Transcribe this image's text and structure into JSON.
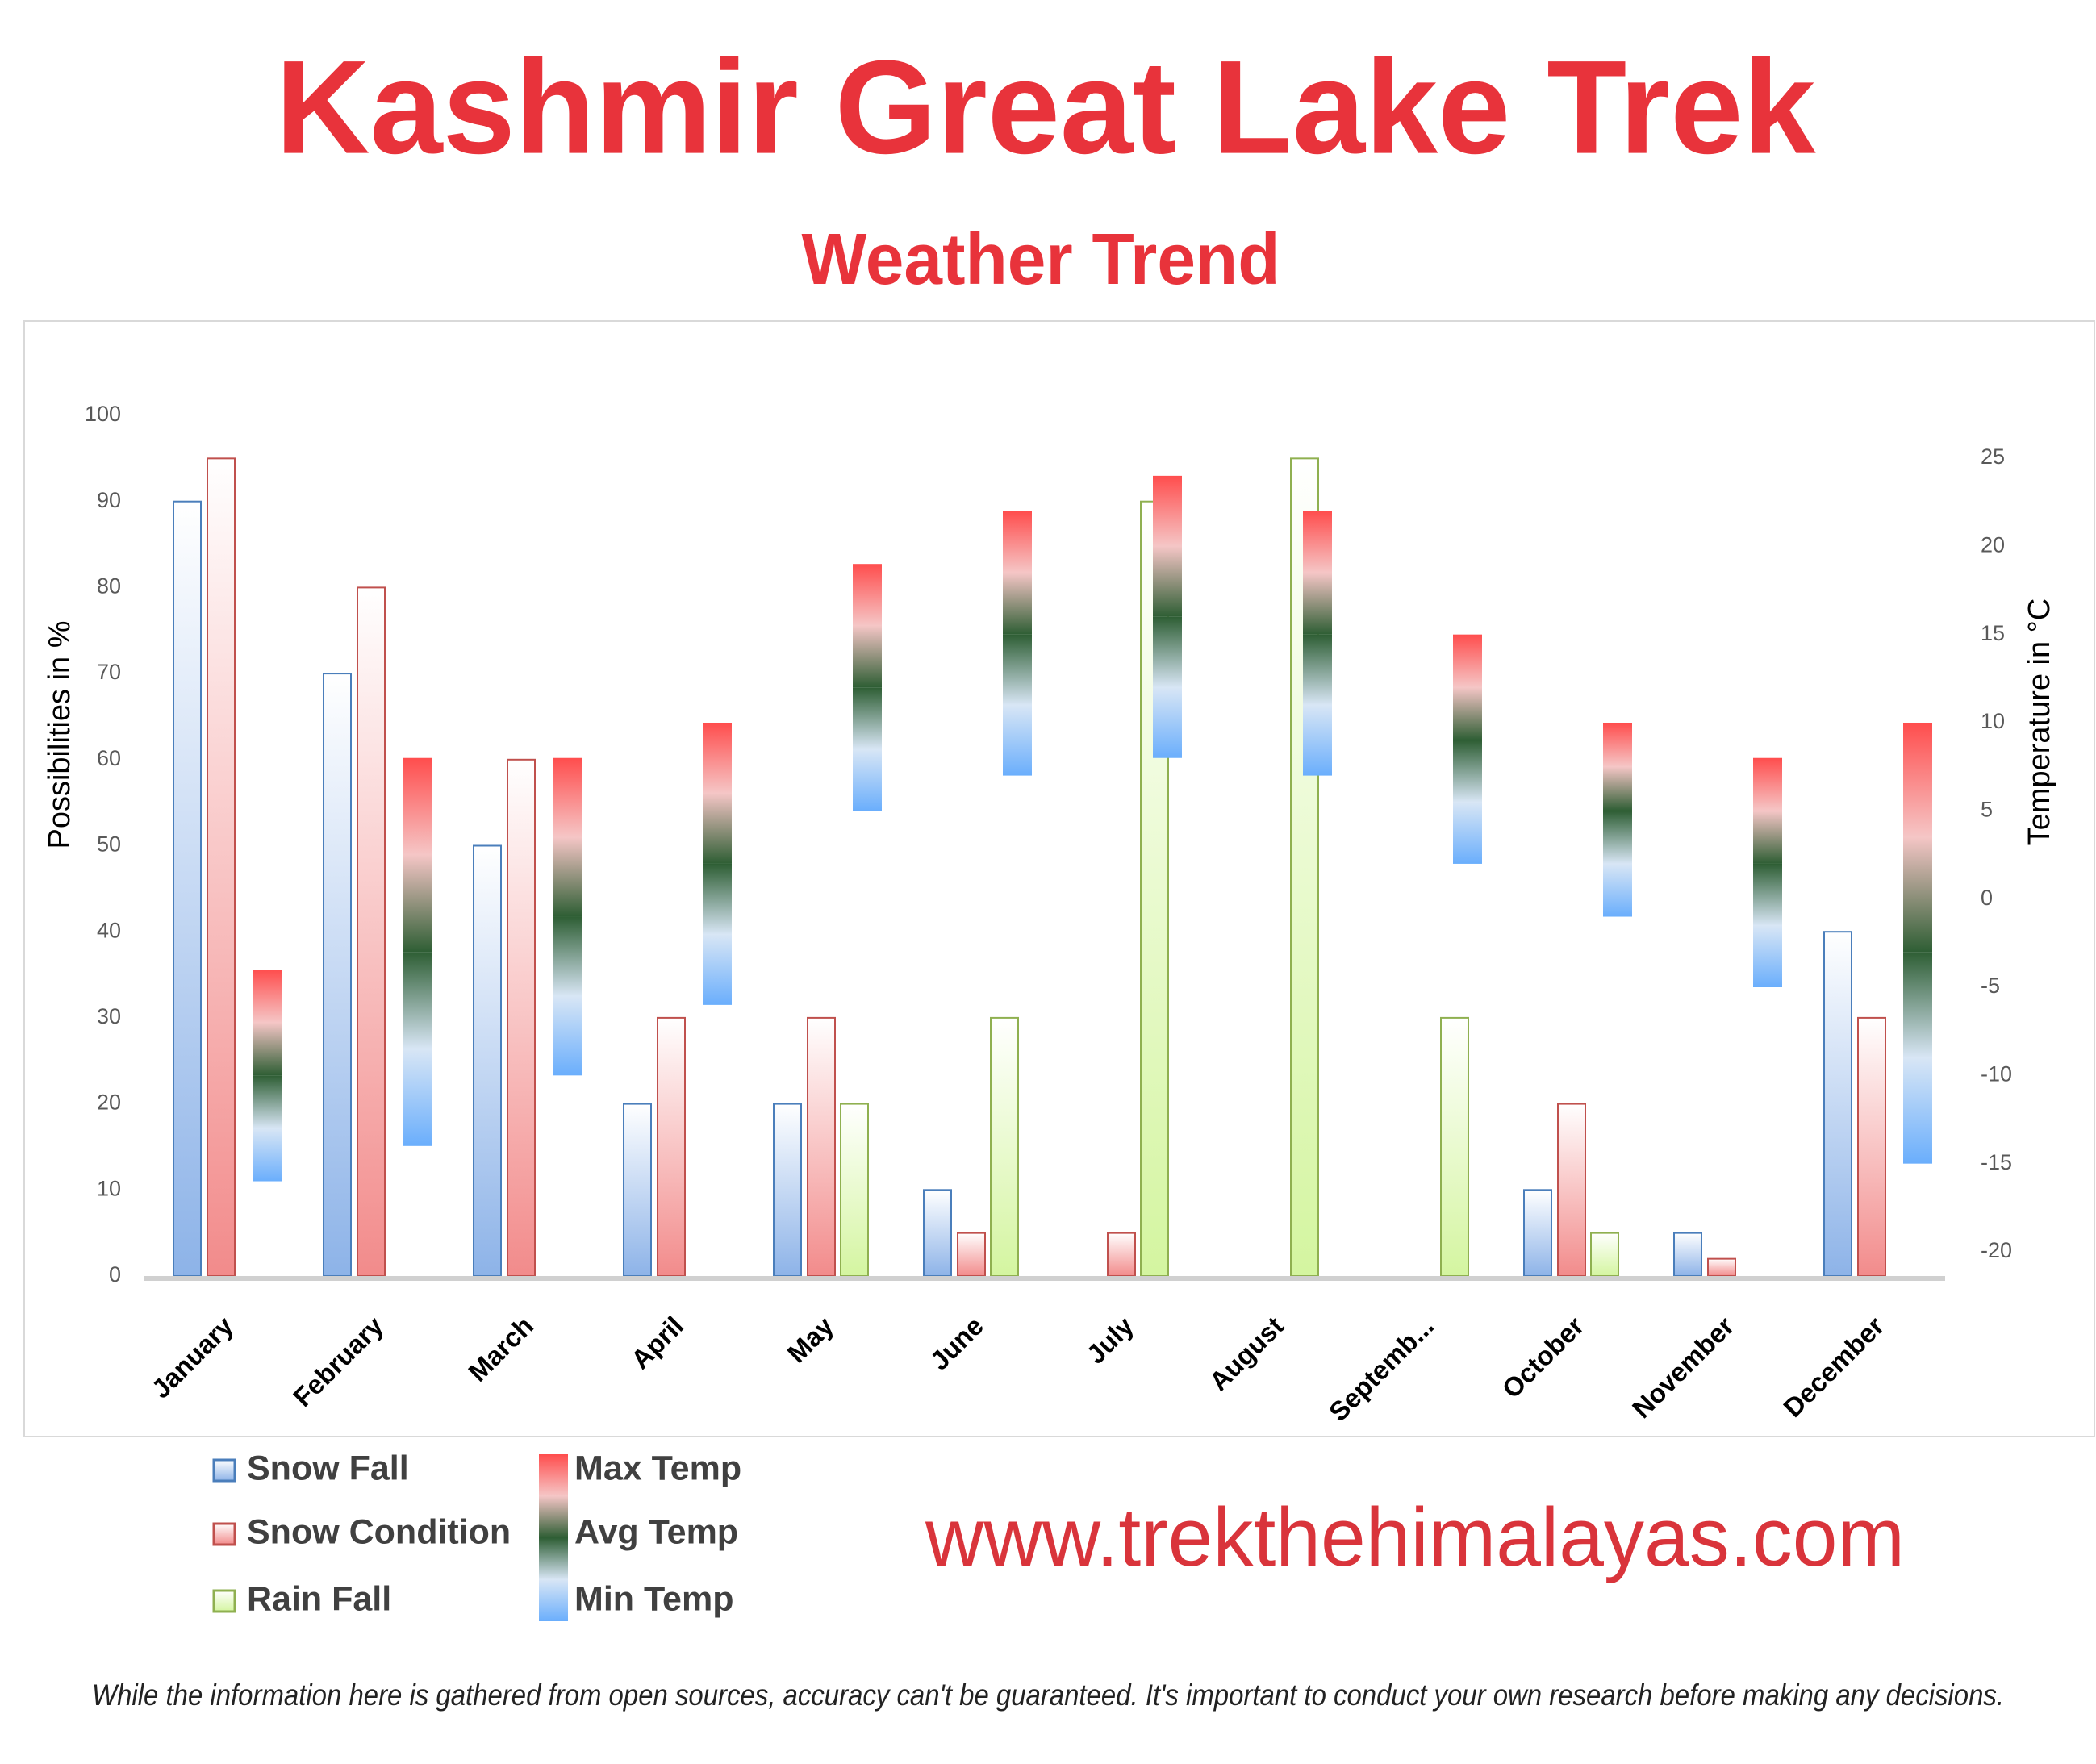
{
  "chart_data": {
    "type": "bar",
    "title": "Kashmir Great Lake Trek",
    "subtitle": "Weather Trend",
    "ylabel": "Possibilities in %",
    "y2label": "Temperature in °C",
    "categories": [
      "January",
      "February",
      "March",
      "April",
      "May",
      "June",
      "July",
      "August",
      "Septemb...",
      "October",
      "November",
      "December"
    ],
    "ylim": [
      0,
      100
    ],
    "yticks": [
      0,
      10,
      20,
      30,
      40,
      50,
      60,
      70,
      80,
      90,
      100
    ],
    "y2lim": [
      -20,
      25
    ],
    "y2ticks": [
      -20,
      -15,
      -10,
      -5,
      0,
      5,
      10,
      15,
      20,
      25
    ],
    "series": [
      {
        "name": "Snow Fall",
        "color": "#8db3e8",
        "values": [
          90,
          70,
          50,
          20,
          20,
          10,
          0,
          0,
          0,
          10,
          5,
          40
        ]
      },
      {
        "name": "Snow Condition",
        "color": "#f28b8b",
        "values": [
          95,
          80,
          60,
          30,
          30,
          5,
          5,
          0,
          0,
          20,
          2,
          30
        ]
      },
      {
        "name": "Rain Fall",
        "color": "#d4f5a0",
        "values": [
          0,
          0,
          0,
          0,
          20,
          30,
          90,
          95,
          30,
          5,
          0,
          0
        ]
      },
      {
        "name": "Max Temp",
        "color": "#ff4d4d",
        "axis": "y2",
        "values": [
          -4,
          8,
          8,
          10,
          19,
          22,
          24,
          22,
          15,
          10,
          8,
          10
        ]
      },
      {
        "name": "Avg Temp",
        "color": "#2e5e34",
        "axis": "y2",
        "values": [
          -10,
          -3,
          -1,
          2,
          12,
          15,
          16,
          15,
          9,
          5,
          2,
          -3
        ]
      },
      {
        "name": "Min Temp",
        "color": "#6aaefc",
        "axis": "y2",
        "values": [
          -16,
          -14,
          -10,
          -6,
          5,
          7,
          8,
          7,
          2,
          -1,
          -5,
          -15
        ]
      }
    ]
  },
  "footer": {
    "website": "www.trekthehimalayas.com",
    "disclaimer": "While the information here is gathered from open sources, accuracy can't be guaranteed. It's important to conduct your own research before making any decisions."
  }
}
